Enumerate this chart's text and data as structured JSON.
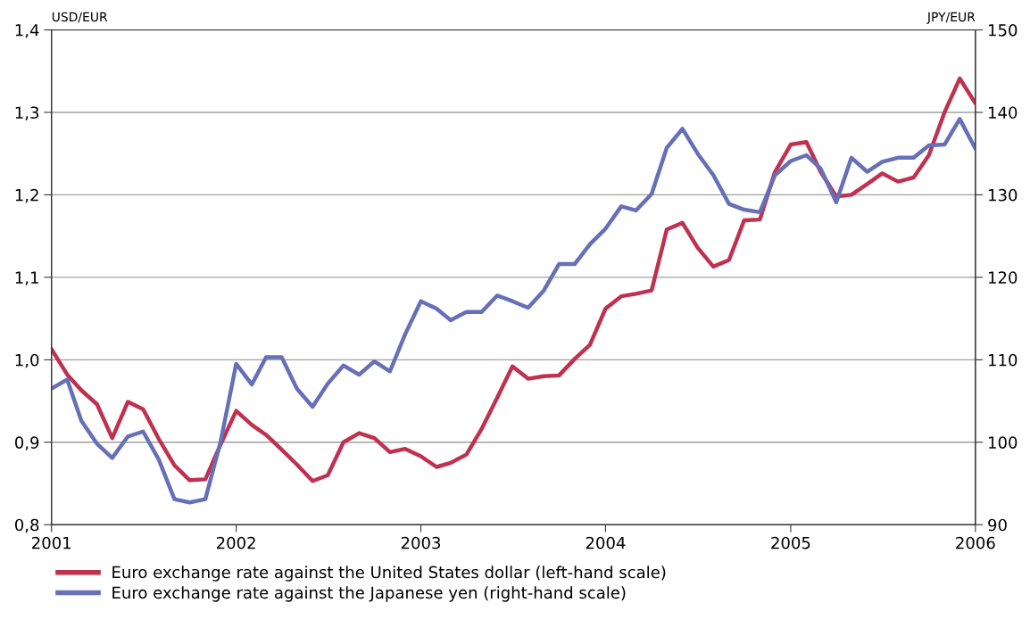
{
  "chart_data": {
    "type": "line",
    "ylabel": "USD/EUR",
    "y2label": "JPY/EUR",
    "x": [
      "2001-01",
      "2001-02",
      "2001-03",
      "2001-04",
      "2001-05",
      "2001-06",
      "2001-07",
      "2001-08",
      "2001-09",
      "2001-10",
      "2001-11",
      "2001-12",
      "2002-01",
      "2002-02",
      "2002-03",
      "2002-04",
      "2002-05",
      "2002-06",
      "2002-07",
      "2002-08",
      "2002-09",
      "2002-10",
      "2002-11",
      "2002-12",
      "2003-01",
      "2003-02",
      "2003-03",
      "2003-04",
      "2003-05",
      "2003-06",
      "2003-07",
      "2003-08",
      "2003-09",
      "2003-10",
      "2003-11",
      "2003-12",
      "2004-01",
      "2004-02",
      "2004-03",
      "2004-04",
      "2004-05",
      "2004-06",
      "2004-07",
      "2004-08",
      "2004-09",
      "2004-10",
      "2004-11",
      "2004-12",
      "2005-01",
      "2005-02",
      "2005-03",
      "2005-04",
      "2005-05",
      "2005-06",
      "2005-07",
      "2005-08",
      "2005-09",
      "2005-10",
      "2005-11",
      "2005-12",
      "2006-01"
    ],
    "series": [
      {
        "name": "Euro exchange rate against the United States dollar (left-hand scale)",
        "color": "#c0304f",
        "values": [
          1.013,
          0.982,
          0.963,
          0.946,
          0.905,
          0.949,
          0.94,
          0.904,
          0.872,
          0.854,
          0.855,
          0.897,
          0.938,
          0.921,
          0.909,
          0.891,
          0.873,
          0.853,
          0.86,
          0.9,
          0.911,
          0.905,
          0.888,
          0.892,
          0.883,
          0.87,
          0.875,
          0.885,
          0.916,
          0.954,
          0.992,
          0.977,
          0.98,
          0.981,
          1.001,
          1.018,
          1.062,
          1.077,
          1.08,
          1.084,
          1.158,
          1.166,
          1.136,
          1.113,
          1.121,
          1.169,
          1.17,
          1.228,
          1.261,
          1.264,
          1.228,
          1.198,
          1.2,
          1.213,
          1.226,
          1.216,
          1.221,
          1.248,
          1.3,
          1.341,
          1.311
        ]
      },
      {
        "name": "Euro exchange rate against the Japanese yen (right-hand scale)",
        "color": "#6570b8",
        "axis": "y2",
        "values": [
          106.5,
          107.6,
          102.6,
          99.8,
          98.1,
          100.7,
          101.3,
          97.9,
          93.1,
          92.7,
          93.1,
          100.0,
          109.5,
          107.0,
          110.3,
          110.3,
          106.5,
          104.3,
          107.1,
          109.3,
          108.2,
          109.8,
          108.6,
          113.1,
          117.1,
          116.2,
          114.8,
          115.8,
          115.8,
          117.8,
          117.1,
          116.3,
          118.4,
          121.6,
          121.6,
          124.0,
          125.9,
          128.6,
          128.1,
          130.1,
          135.7,
          138.0,
          135.0,
          132.4,
          128.9,
          128.2,
          127.9,
          132.4,
          134.1,
          134.8,
          133.2,
          129.1,
          134.5,
          132.8,
          134.0,
          134.5,
          134.5,
          136.0,
          136.1,
          139.2,
          135.6
        ]
      }
    ],
    "xlim": [
      "2001",
      "2006"
    ],
    "xticks": [
      "2001",
      "2002",
      "2003",
      "2004",
      "2005",
      "2006"
    ],
    "ylim": [
      0.8,
      1.4
    ],
    "yticks": [
      {
        "value": 0.8,
        "label": "0,8"
      },
      {
        "value": 0.9,
        "label": "0,9"
      },
      {
        "value": 1.0,
        "label": "1,0"
      },
      {
        "value": 1.1,
        "label": "1,1"
      },
      {
        "value": 1.2,
        "label": "1,2"
      },
      {
        "value": 1.3,
        "label": "1,3"
      },
      {
        "value": 1.4,
        "label": "1,4"
      }
    ],
    "y2lim": [
      90,
      150
    ],
    "y2ticks": [
      90,
      100,
      110,
      120,
      130,
      140,
      150
    ],
    "grid": "y",
    "legend": "bottom left",
    "marker": "none",
    "line_style": "solid"
  }
}
